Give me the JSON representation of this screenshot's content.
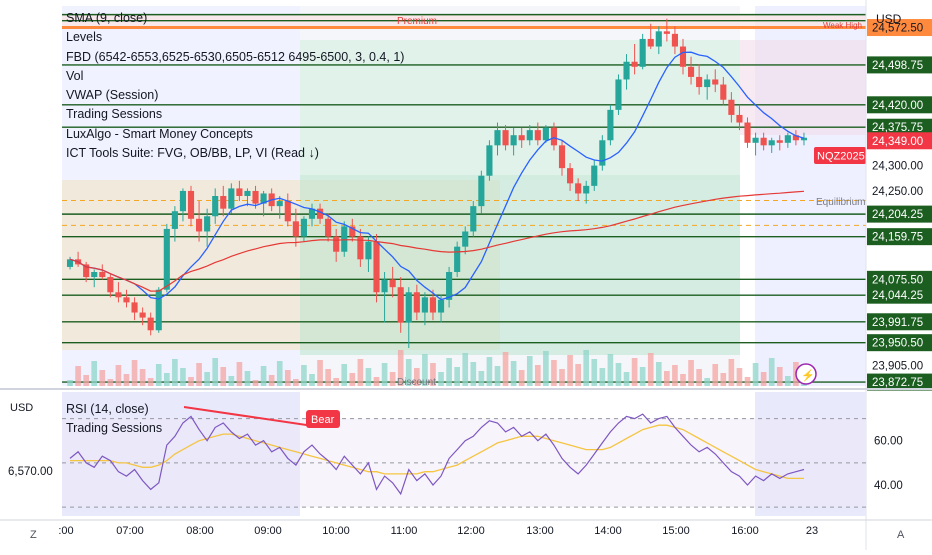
{
  "header": {
    "currency": "USD"
  },
  "legend": {
    "items": [
      "SMA (9, close)",
      "Levels",
      "FBD (6542-6553,6525-6530,6505-6512 6495-6500, 3, 0.4, 1)",
      "Vol",
      "VWAP (Session)",
      "Trading Sessions",
      "LuxAlgo - Smart Money Concepts",
      "ICT Tools Suite: FVG, OB/BB, LP, VI (Read ↓)"
    ]
  },
  "annotations": {
    "premium": "Premium",
    "weak_high": "Weak High",
    "equilibrium": "Equilibrium",
    "discount": "Discount",
    "bear": "Bear",
    "ticker": "NQZ2025"
  },
  "rsi_panel": {
    "currency": "USD",
    "left_value": "6,570.00",
    "legend": [
      "RSI (14, close)",
      "Trading Sessions"
    ]
  },
  "footer": {
    "left_corner": "Z",
    "right_corner": "A"
  },
  "colors": {
    "up": "#26a69a",
    "down": "#ef5350",
    "sma": "#2962ff",
    "vwap": "#e53935",
    "level": "#1b5e20",
    "rsi": "#7e57c2",
    "rsi_ma": "#f5c542"
  },
  "chart_data": [
    {
      "type": "candlestick",
      "x_ticks": [
        ":00",
        "07:00",
        "08:00",
        "09:00",
        "10:00",
        "11:00",
        "12:00",
        "13:00",
        "14:00",
        "15:00",
        "16:00",
        "23"
      ],
      "price_labels": [
        {
          "value": 24572.5,
          "text": "24,572.50",
          "style": "orange"
        },
        {
          "value": 24498.75,
          "text": "24,498.75",
          "style": "green"
        },
        {
          "value": 24420.0,
          "text": "24,420.00",
          "style": "green"
        },
        {
          "value": 24375.75,
          "text": "24,375.75",
          "style": "green"
        },
        {
          "value": 24349.0,
          "text": "24,349.00",
          "style": "red"
        },
        {
          "value": 24300.0,
          "text": "24,300.00",
          "style": "plain"
        },
        {
          "value": 24250.0,
          "text": "24,250.00",
          "style": "plain"
        },
        {
          "value": 24204.25,
          "text": "24,204.25",
          "style": "green"
        },
        {
          "value": 24159.75,
          "text": "24,159.75",
          "style": "green"
        },
        {
          "value": 24075.5,
          "text": "24,075.50",
          "style": "green"
        },
        {
          "value": 24044.25,
          "text": "24,044.25",
          "style": "green"
        },
        {
          "value": 23991.75,
          "text": "23,991.75",
          "style": "green"
        },
        {
          "value": 23950.5,
          "text": "23,950.50",
          "style": "green"
        },
        {
          "value": 23905.0,
          "text": "23,905.00",
          "style": "plain"
        },
        {
          "value": 23872.75,
          "text": "23,872.75",
          "style": "green"
        }
      ],
      "levels": [
        24598,
        24586,
        24572.5,
        24498.75,
        24420.0,
        24375.75,
        24204.25,
        24159.75,
        24075.5,
        24044.25,
        23991.75,
        23950.5,
        23872.75
      ],
      "ylim": [
        23865,
        24615
      ],
      "candles": [
        [
          24100,
          24120,
          24095,
          24115
        ],
        [
          24115,
          24130,
          24100,
          24105
        ],
        [
          24105,
          24110,
          24070,
          24080
        ],
        [
          24080,
          24095,
          24060,
          24090
        ],
        [
          24090,
          24105,
          24075,
          24080
        ],
        [
          24080,
          24085,
          24040,
          24050
        ],
        [
          24050,
          24070,
          24030,
          24040
        ],
        [
          24040,
          24055,
          24020,
          24030
        ],
        [
          24030,
          24040,
          23995,
          24010
        ],
        [
          24010,
          24020,
          23985,
          24000
        ],
        [
          24000,
          24010,
          23965,
          23975
        ],
        [
          23975,
          24060,
          23970,
          24055
        ],
        [
          24055,
          24185,
          24050,
          24175
        ],
        [
          24175,
          24220,
          24150,
          24210
        ],
        [
          24210,
          24255,
          24190,
          24250
        ],
        [
          24250,
          24260,
          24180,
          24195
        ],
        [
          24195,
          24230,
          24150,
          24170
        ],
        [
          24170,
          24215,
          24140,
          24200
        ],
        [
          24200,
          24255,
          24185,
          24240
        ],
        [
          24240,
          24260,
          24200,
          24215
        ],
        [
          24215,
          24265,
          24205,
          24255
        ],
        [
          24255,
          24270,
          24230,
          24240
        ],
        [
          24240,
          24255,
          24220,
          24250
        ],
        [
          24250,
          24260,
          24215,
          24225
        ],
        [
          24225,
          24250,
          24200,
          24245
        ],
        [
          24245,
          24255,
          24210,
          24220
        ],
        [
          24220,
          24240,
          24195,
          24230
        ],
        [
          24230,
          24245,
          24180,
          24190
        ],
        [
          24190,
          24215,
          24140,
          24160
        ],
        [
          24160,
          24200,
          24150,
          24195
        ],
        [
          24195,
          24225,
          24180,
          24215
        ],
        [
          24215,
          24225,
          24185,
          24195
        ],
        [
          24195,
          24205,
          24150,
          24160
        ],
        [
          24160,
          24175,
          24110,
          24130
        ],
        [
          24130,
          24190,
          24120,
          24180
        ],
        [
          24180,
          24195,
          24150,
          24160
        ],
        [
          24160,
          24175,
          24100,
          24115
        ],
        [
          24115,
          24160,
          24090,
          24150
        ],
        [
          24150,
          24165,
          24030,
          24050
        ],
        [
          24050,
          24090,
          23990,
          24075
        ],
        [
          24075,
          24100,
          24040,
          24060
        ],
        [
          24060,
          24080,
          23970,
          23990
        ],
        [
          23990,
          24060,
          23940,
          24050
        ],
        [
          24050,
          24065,
          23995,
          24010
        ],
        [
          24010,
          24050,
          23985,
          24040
        ],
        [
          24040,
          24055,
          23995,
          24010
        ],
        [
          24010,
          24045,
          23990,
          24035
        ],
        [
          24035,
          24100,
          24020,
          24090
        ],
        [
          24090,
          24150,
          24080,
          24140
        ],
        [
          24140,
          24180,
          24125,
          24170
        ],
        [
          24170,
          24230,
          24160,
          24220
        ],
        [
          24220,
          24290,
          24205,
          24280
        ],
        [
          24280,
          24350,
          24270,
          24340
        ],
        [
          24340,
          24385,
          24320,
          24370
        ],
        [
          24370,
          24380,
          24330,
          24340
        ],
        [
          24340,
          24375,
          24320,
          24360
        ],
        [
          24360,
          24375,
          24335,
          24350
        ],
        [
          24350,
          24380,
          24340,
          24370
        ],
        [
          24370,
          24385,
          24340,
          24350
        ],
        [
          24350,
          24380,
          24345,
          24375
        ],
        [
          24375,
          24385,
          24330,
          24340
        ],
        [
          24340,
          24350,
          24280,
          24295
        ],
        [
          24295,
          24305,
          24250,
          24265
        ],
        [
          24265,
          24275,
          24230,
          24245
        ],
        [
          24245,
          24270,
          24225,
          24260
        ],
        [
          24260,
          24310,
          24250,
          24300
        ],
        [
          24300,
          24360,
          24290,
          24350
        ],
        [
          24350,
          24420,
          24340,
          24410
        ],
        [
          24410,
          24480,
          24400,
          24470
        ],
        [
          24470,
          24520,
          24450,
          24505
        ],
        [
          24505,
          24540,
          24480,
          24495
        ],
        [
          24495,
          24560,
          24490,
          24550
        ],
        [
          24550,
          24580,
          24530,
          24535
        ],
        [
          24535,
          24575,
          24520,
          24565
        ],
        [
          24565,
          24590,
          24545,
          24560
        ],
        [
          24560,
          24575,
          24520,
          24535
        ],
        [
          24535,
          24550,
          24480,
          24495
        ],
        [
          24495,
          24515,
          24460,
          24475
        ],
        [
          24475,
          24500,
          24440,
          24455
        ],
        [
          24455,
          24480,
          24430,
          24470
        ],
        [
          24470,
          24490,
          24445,
          24460
        ],
        [
          24460,
          24475,
          24420,
          24430
        ],
        [
          24430,
          24445,
          24385,
          24400
        ],
        [
          24400,
          24420,
          24370,
          24385
        ],
        [
          24385,
          24395,
          24335,
          24345
        ],
        [
          24345,
          24365,
          24320,
          24355
        ],
        [
          24355,
          24365,
          24330,
          24340
        ],
        [
          24340,
          24355,
          24325,
          24350
        ],
        [
          24350,
          24360,
          24330,
          24345
        ],
        [
          24345,
          24365,
          24335,
          24360
        ],
        [
          24360,
          24370,
          24340,
          24350
        ],
        [
          24350,
          24365,
          24340,
          24355
        ]
      ],
      "volume_note": "Vol panel"
    },
    {
      "type": "line",
      "title": "RSI (14, close)",
      "y_ticks": [
        60.0,
        40.0
      ],
      "ylim": [
        26,
        82
      ],
      "hlines": [
        70,
        50,
        30
      ],
      "rsi": [
        52,
        55,
        50,
        48,
        53,
        51,
        46,
        44,
        47,
        42,
        38,
        41,
        58,
        62,
        68,
        71,
        65,
        60,
        66,
        68,
        64,
        61,
        63,
        58,
        60,
        55,
        57,
        52,
        49,
        55,
        58,
        54,
        51,
        47,
        53,
        49,
        45,
        50,
        38,
        44,
        41,
        36,
        47,
        42,
        45,
        40,
        44,
        52,
        56,
        60,
        62,
        66,
        69,
        68,
        64,
        66,
        62,
        64,
        60,
        63,
        58,
        52,
        48,
        45,
        49,
        54,
        59,
        64,
        68,
        71,
        70,
        72,
        68,
        70,
        71,
        66,
        62,
        58,
        55,
        57,
        54,
        50,
        46,
        44,
        40,
        44,
        42,
        45,
        43,
        45,
        46,
        47
      ],
      "rsi_ma": [
        51,
        51,
        51,
        51,
        51,
        51,
        50,
        50,
        49,
        48,
        48,
        49,
        51,
        54,
        56,
        58,
        60,
        61,
        62,
        63,
        63,
        62,
        61,
        60,
        59,
        58,
        57,
        56,
        55,
        54,
        53,
        52,
        51,
        50,
        49,
        48,
        47,
        46,
        46,
        45,
        45,
        45,
        45,
        45,
        46,
        46,
        47,
        48,
        49,
        51,
        53,
        55,
        57,
        59,
        60,
        61,
        62,
        62,
        62,
        61,
        60,
        59,
        58,
        57,
        56,
        56,
        56,
        57,
        59,
        61,
        63,
        65,
        66,
        67,
        67,
        66,
        65,
        63,
        61,
        59,
        57,
        55,
        53,
        51,
        49,
        47,
        46,
        45,
        44,
        43,
        43,
        43
      ],
      "annotation": "Bear"
    }
  ]
}
